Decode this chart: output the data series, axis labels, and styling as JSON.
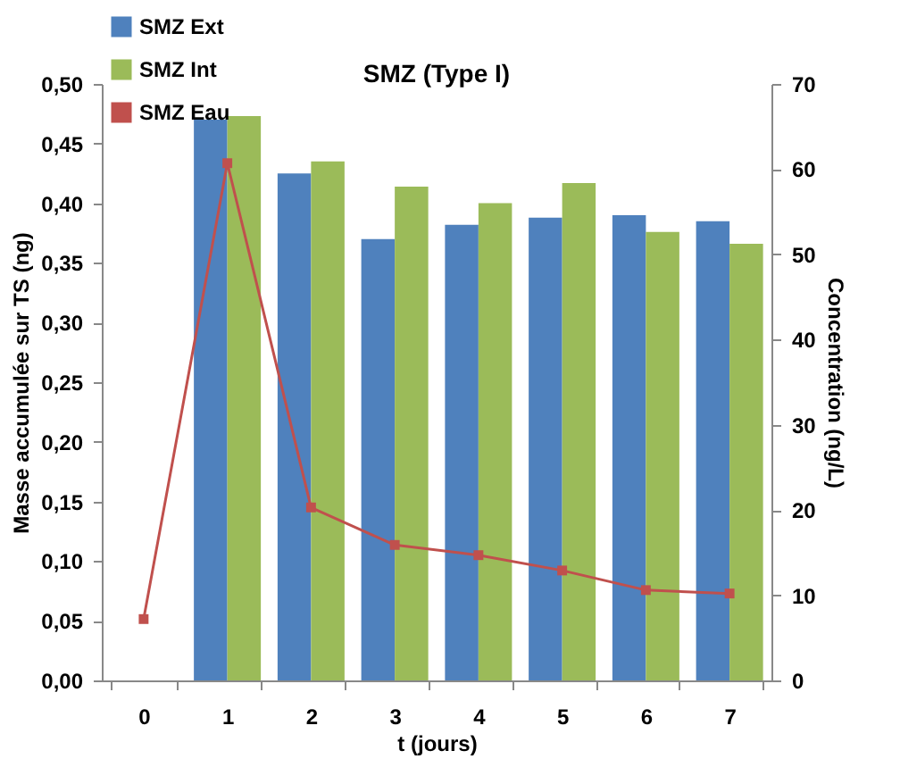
{
  "chart_data": {
    "type": "bar",
    "title": "SMZ (Type I)",
    "xlabel": "t (jours)",
    "ylabel": "Masse accumulée sur TS (ng)",
    "y2label": "Concentration (ng/L)",
    "categories": [
      "0",
      "1",
      "2",
      "3",
      "4",
      "5",
      "6",
      "7"
    ],
    "series": [
      {
        "name": "SMZ Ext",
        "color": "#4f81bd",
        "values": [
          null,
          0.47,
          0.425,
          0.37,
          0.382,
          0.388,
          0.39,
          0.385
        ]
      },
      {
        "name": "SMZ Int",
        "color": "#9bbb59",
        "values": [
          null,
          0.473,
          0.435,
          0.414,
          0.4,
          0.417,
          0.376,
          0.366
        ]
      },
      {
        "name": "SMZ Eau",
        "color": "#c0504d",
        "type": "line",
        "axis": "y2",
        "marker": "square",
        "values": [
          7.2,
          60.7,
          20.3,
          15.9,
          14.7,
          12.9,
          10.6,
          10.2
        ]
      }
    ],
    "ylim": [
      0,
      0.5
    ],
    "yticks": [
      {
        "value": 0,
        "label": "0,00"
      },
      {
        "value": 0.05,
        "label": "0,05"
      },
      {
        "value": 0.1,
        "label": "0,10"
      },
      {
        "value": 0.15,
        "label": "0,15"
      },
      {
        "value": 0.2,
        "label": "0,20"
      },
      {
        "value": 0.25,
        "label": "0,25"
      },
      {
        "value": 0.3,
        "label": "0,30"
      },
      {
        "value": 0.35,
        "label": "0,35"
      },
      {
        "value": 0.4,
        "label": "0,40"
      },
      {
        "value": 0.45,
        "label": "0,45"
      },
      {
        "value": 0.5,
        "label": "0,50"
      }
    ],
    "y2lim": [
      0,
      70
    ],
    "y2ticks": [
      0,
      10,
      20,
      30,
      40,
      50,
      60,
      70
    ],
    "grid": false,
    "legend": "top left"
  }
}
